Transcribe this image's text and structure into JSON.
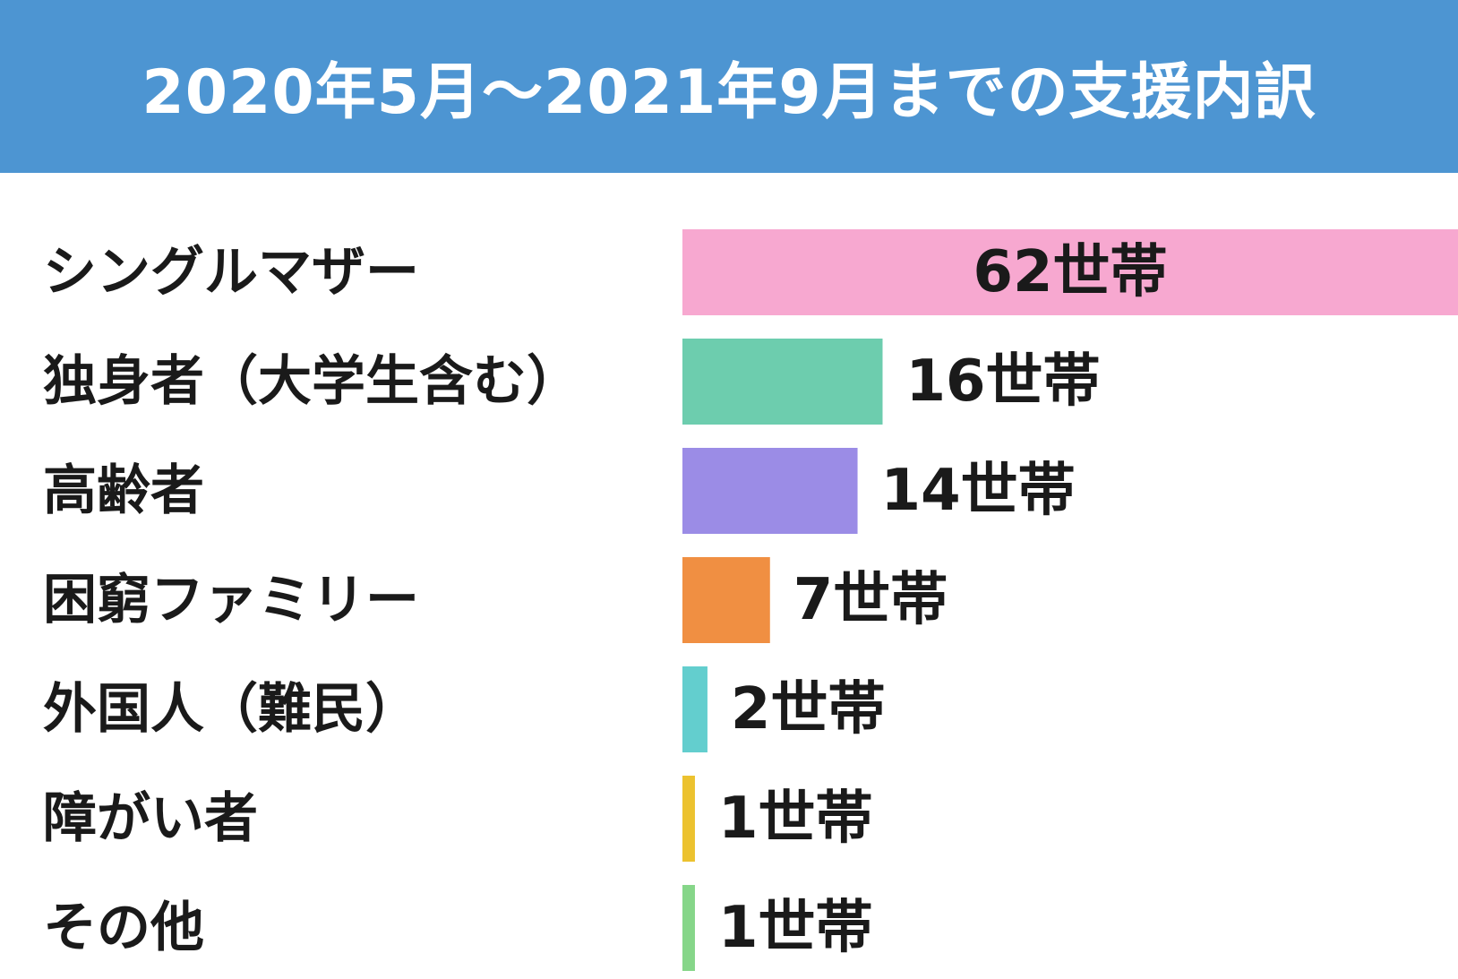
{
  "chart_data": {
    "type": "bar",
    "orientation": "horizontal",
    "title": "2020年5月〜2021年9月までの支援内訳",
    "categories": [
      "シングルマザー",
      "独身者（大学生含む）",
      "高齢者",
      "困窮ファミリー",
      "外国人（難民）",
      "障がい者",
      "その他"
    ],
    "values": [
      62,
      16,
      14,
      7,
      2,
      1,
      1
    ],
    "value_labels": [
      "62世帯",
      "16世帯",
      "14世帯",
      "7世帯",
      "2世帯",
      "1世帯",
      "1世帯"
    ],
    "unit": "世帯",
    "colors": [
      "#f7a8d0",
      "#6dcdae",
      "#9b8ce6",
      "#f08f42",
      "#63cece",
      "#ecc22f",
      "#86d689"
    ],
    "xlim": [
      0,
      62
    ],
    "grid": false,
    "legend": "none"
  }
}
